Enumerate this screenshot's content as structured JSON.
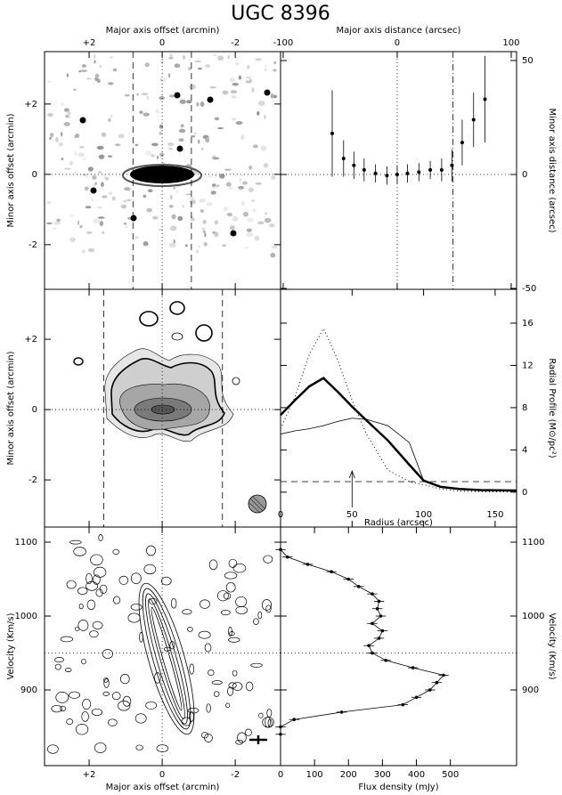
{
  "title": "UGC 8396",
  "chart_data": [
    {
      "type": "image",
      "xlabel": "Major axis offset (arcmin)",
      "ylabel": "Minor axis offset (arcmin)",
      "xlim": [
        3.22,
        -3.24
      ],
      "ylim": [
        -3.27,
        3.49
      ],
      "xticks": [
        {
          "value": 2,
          "label": "+2"
        },
        0,
        -2
      ],
      "yticks": [
        {
          "value": 2,
          "label": "+2"
        },
        0,
        -2
      ],
      "refs": [
        {
          "axis": "x",
          "value": 0.8,
          "dash": "dashed"
        },
        {
          "axis": "x",
          "value": -0.8,
          "dash": "dashed"
        },
        {
          "axis": "x",
          "value": 0,
          "dash": "dotted"
        },
        {
          "axis": "y",
          "value": 0,
          "dash": "dotted"
        }
      ]
    },
    {
      "type": "scatter",
      "xlabel": "Major axis distance (arcsec)",
      "ylabel": "Minor axis distance (arcsec)",
      "xlim": [
        -102.3,
        104.7
      ],
      "ylim": [
        -50.4,
        53.9
      ],
      "xticks": [
        -100,
        0,
        100
      ],
      "yticks": [
        50,
        0,
        -50
      ],
      "x": [
        -57,
        -47,
        -38,
        -29,
        -19,
        -9,
        0,
        9,
        19,
        29,
        39,
        48,
        57,
        67,
        77
      ],
      "values": [
        18,
        7,
        4,
        2,
        0.5,
        -0.5,
        0,
        0.5,
        1,
        2,
        2,
        4,
        14,
        24,
        33
      ],
      "errors": [
        19,
        8,
        6,
        5,
        4,
        4,
        4,
        4,
        4,
        4,
        5,
        7,
        10,
        12,
        19
      ],
      "color": "#000000",
      "refs": [
        {
          "axis": "x",
          "value": 0,
          "dash": "dotted"
        },
        {
          "axis": "x",
          "value": 49,
          "dash": "dashdot"
        },
        {
          "axis": "y",
          "value": 0,
          "dash": "dotted"
        }
      ]
    },
    {
      "type": "contour",
      "ylabel": "Minor axis offset (arcmin)",
      "xlim": [
        3.22,
        -3.24
      ],
      "ylim": [
        -3.34,
        3.42
      ],
      "xticks": [
        {
          "value": 2,
          "label": "+2"
        },
        0,
        -2
      ],
      "yticks": [
        {
          "value": 2,
          "label": "+2"
        },
        0,
        -2
      ],
      "refs": [
        {
          "axis": "x",
          "value": 1.6,
          "dash": "dashed"
        },
        {
          "axis": "x",
          "value": -1.65,
          "dash": "dashed"
        },
        {
          "axis": "x",
          "value": 0,
          "dash": "dotted"
        },
        {
          "axis": "y",
          "value": 0,
          "dash": "dotted"
        }
      ]
    },
    {
      "type": "line",
      "xlabel": "Radius (arcsec)",
      "ylabel": "Radial Profile (M⊙/pc²)",
      "xlim": [
        0,
        165
      ],
      "ylim": [
        -3.3,
        19.2
      ],
      "xticks": [
        0,
        50,
        100,
        150
      ],
      "yticks": [
        0,
        4,
        8,
        12,
        16
      ],
      "x": [
        0,
        10,
        20,
        30,
        40,
        50,
        60,
        75,
        90,
        100,
        112,
        125,
        140,
        165
      ],
      "series": [
        {
          "color": "#000000",
          "linewidth": 2.5,
          "dash": "solid",
          "values": [
            7.3,
            8.7,
            10,
            10.8,
            9.5,
            8.1,
            6.8,
            4.9,
            2.6,
            1.1,
            0.5,
            0.3,
            0.2,
            0.15
          ]
        },
        {
          "color": "#000000",
          "linewidth": 1,
          "dash": "dotted",
          "values": [
            6,
            9,
            13,
            15.5,
            12.5,
            8.7,
            5.5,
            2.1,
            1,
            0.7,
            0.3,
            0.1,
            0.05,
            0
          ]
        },
        {
          "color": "#000000",
          "linewidth": 0.8,
          "dash": "solid",
          "values": [
            5.5,
            5.8,
            6,
            6.3,
            6.7,
            7,
            6.9,
            6.3,
            4.7,
            1.1,
            0.5,
            0.3,
            0.2,
            0.2
          ]
        }
      ],
      "refs": [
        {
          "axis": "y",
          "value": 1,
          "dash": "dashed"
        },
        {
          "axis": "x",
          "value": 50,
          "dash": "arrow"
        }
      ]
    },
    {
      "type": "contour",
      "xlabel": "Major axis offset (arcmin)",
      "ylabel": "Velocity (Km/s)",
      "xlim": [
        3.22,
        -3.24
      ],
      "ylim": [
        797.6,
        1120.5
      ],
      "xticks": [
        {
          "value": 2,
          "label": "+2"
        },
        0,
        -2
      ],
      "yticks": [
        900,
        1000,
        1100
      ],
      "refs": [
        {
          "axis": "x",
          "value": 0,
          "dash": "dotted"
        },
        {
          "axis": "y",
          "value": 950,
          "dash": "dotted"
        }
      ]
    },
    {
      "type": "spectrum",
      "xlabel": "Flux density (mJy)",
      "ylabel": "Velocity (Km/s)",
      "xlim": [
        0,
        695
      ],
      "ylim": [
        797.6,
        1120.5
      ],
      "xticks": [
        0,
        100,
        200,
        300,
        400,
        500
      ],
      "yticks": [
        900,
        1000,
        1100
      ],
      "y": [
        1090,
        1080,
        1070,
        1060,
        1050,
        1040,
        1030,
        1020,
        1010,
        1000,
        990,
        980,
        970,
        960,
        950,
        940,
        930,
        920,
        910,
        900,
        890,
        880,
        870,
        860,
        850,
        840
      ],
      "values": [
        0,
        20,
        80,
        150,
        200,
        230,
        270,
        290,
        285,
        295,
        270,
        300,
        290,
        260,
        270,
        310,
        390,
        480,
        460,
        440,
        400,
        360,
        180,
        40,
        0,
        0
      ],
      "errors": [
        15,
        15,
        15,
        15,
        15,
        15,
        15,
        15,
        15,
        15,
        15,
        15,
        15,
        15,
        15,
        15,
        15,
        15,
        15,
        15,
        15,
        15,
        15,
        15,
        15,
        15
      ],
      "color": "#000000",
      "refs": [
        {
          "axis": "y",
          "value": 950,
          "dash": "dotted"
        }
      ]
    }
  ]
}
